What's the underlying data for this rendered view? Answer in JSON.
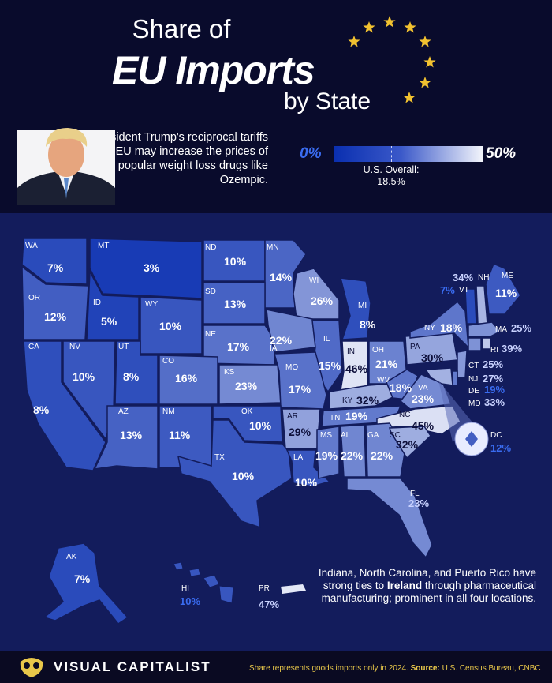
{
  "title": {
    "line1": "Share of",
    "line2": "EU Imports",
    "line3": "by State"
  },
  "intro_text": "President Trump's reciprocal tariffs on the EU may increase the prices of popular weight loss drugs like Ozempic.",
  "legend": {
    "min_label": "0%",
    "max_label": "50%",
    "overall_label": "U.S. Overall:",
    "overall_value": "18.5%",
    "min_color": "#0a2fb0",
    "max_color": "#f2f4fb"
  },
  "states": [
    {
      "abbr": "WA",
      "value": "7%",
      "share": 7
    },
    {
      "abbr": "MT",
      "value": "3%",
      "share": 3
    },
    {
      "abbr": "ND",
      "value": "10%",
      "share": 10
    },
    {
      "abbr": "MN",
      "value": "14%",
      "share": 14
    },
    {
      "abbr": "OR",
      "value": "12%",
      "share": 12
    },
    {
      "abbr": "ID",
      "value": "5%",
      "share": 5
    },
    {
      "abbr": "WY",
      "value": "10%",
      "share": 10
    },
    {
      "abbr": "SD",
      "value": "13%",
      "share": 13
    },
    {
      "abbr": "WI",
      "value": "26%",
      "share": 26
    },
    {
      "abbr": "MI",
      "value": "8%",
      "share": 8
    },
    {
      "abbr": "NE",
      "value": "17%",
      "share": 17
    },
    {
      "abbr": "IA",
      "value": "22%",
      "share": 22
    },
    {
      "abbr": "IL",
      "value": "15%",
      "share": 15
    },
    {
      "abbr": "IN",
      "value": "46%",
      "share": 46
    },
    {
      "abbr": "OH",
      "value": "21%",
      "share": 21
    },
    {
      "abbr": "PA",
      "value": "30%",
      "share": 30
    },
    {
      "abbr": "NY",
      "value": "18%",
      "share": 18
    },
    {
      "abbr": "CA",
      "value": "8%",
      "share": 8
    },
    {
      "abbr": "NV",
      "value": "10%",
      "share": 10
    },
    {
      "abbr": "UT",
      "value": "8%",
      "share": 8
    },
    {
      "abbr": "CO",
      "value": "16%",
      "share": 16
    },
    {
      "abbr": "KS",
      "value": "23%",
      "share": 23
    },
    {
      "abbr": "MO",
      "value": "17%",
      "share": 17
    },
    {
      "abbr": "KY",
      "value": "32%",
      "share": 32
    },
    {
      "abbr": "WV",
      "value": "18%",
      "share": 18
    },
    {
      "abbr": "VA",
      "value": "23%",
      "share": 23
    },
    {
      "abbr": "AZ",
      "value": "13%",
      "share": 13
    },
    {
      "abbr": "NM",
      "value": "11%",
      "share": 11
    },
    {
      "abbr": "OK",
      "value": "10%",
      "share": 10
    },
    {
      "abbr": "AR",
      "value": "29%",
      "share": 29
    },
    {
      "abbr": "TN",
      "value": "19%",
      "share": 19
    },
    {
      "abbr": "NC",
      "value": "45%",
      "share": 45
    },
    {
      "abbr": "TX",
      "value": "10%",
      "share": 10
    },
    {
      "abbr": "LA",
      "value": "10%",
      "share": 10
    },
    {
      "abbr": "MS",
      "value": "19%",
      "share": 19
    },
    {
      "abbr": "AL",
      "value": "22%",
      "share": 22
    },
    {
      "abbr": "GA",
      "value": "22%",
      "share": 22
    },
    {
      "abbr": "SC",
      "value": "32%",
      "share": 32
    },
    {
      "abbr": "FL",
      "value": "23%",
      "share": 23
    },
    {
      "abbr": "ME",
      "value": "11%",
      "share": 11
    },
    {
      "abbr": "NH",
      "value": "34%",
      "share": 34
    },
    {
      "abbr": "VT",
      "value": "7%",
      "share": 7
    },
    {
      "abbr": "MA",
      "value": "25%",
      "share": 25
    },
    {
      "abbr": "RI",
      "value": "39%",
      "share": 39
    },
    {
      "abbr": "CT",
      "value": "25%",
      "share": 25
    },
    {
      "abbr": "NJ",
      "value": "27%",
      "share": 27
    },
    {
      "abbr": "DE",
      "value": "19%",
      "share": 19
    },
    {
      "abbr": "MD",
      "value": "33%",
      "share": 33
    },
    {
      "abbr": "DC",
      "value": "12%",
      "share": 12
    },
    {
      "abbr": "AK",
      "value": "7%",
      "share": 7
    },
    {
      "abbr": "HI",
      "value": "10%",
      "share": 10
    },
    {
      "abbr": "PR",
      "value": "47%",
      "share": 47
    }
  ],
  "note": {
    "before": "Indiana, North Carolina, and Puerto Rico have strong ties to ",
    "bold": "Ireland",
    "after": " through pharmaceutical manufacturing; prominent in all four locations."
  },
  "footer": {
    "brand": "VISUAL CAPITALIST",
    "source_text": "Share represents goods imports only in 2024.",
    "source_label": "Source:",
    "source_value": "U.S. Census Bureau, CNBC"
  },
  "colors": {
    "background": "#0d0f3a",
    "map_panel": "#131c5c",
    "star": "#f2c230",
    "accent_gold": "#e8c74a",
    "value_blue": "#3a6cf0"
  }
}
